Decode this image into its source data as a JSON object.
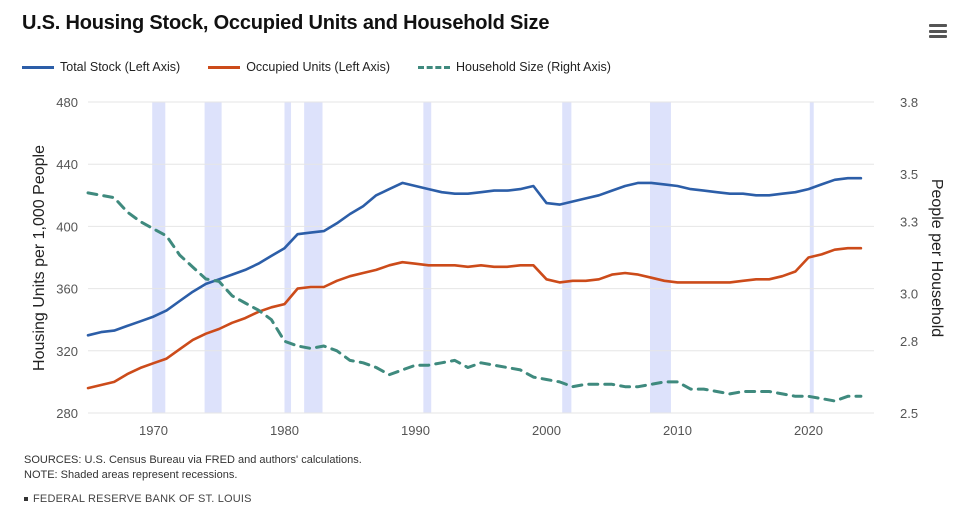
{
  "header": {
    "title": "U.S. Housing Stock, Occupied Units and Household Size",
    "menu_icon": "hamburger-menu-icon"
  },
  "footer": {
    "sources": "SOURCES: U.S. Census Bureau via FRED and authors' calculations.",
    "note": "NOTE: Shaded areas represent recessions.",
    "brand": "FEDERAL RESERVE BANK OF ST. LOUIS"
  },
  "colors": {
    "total": "#2c5ea8",
    "occupied": "#cc4b1a",
    "household": "#3f8a7e",
    "recession": "#dde2fb",
    "grid": "#e6e6e6"
  },
  "chart_data": {
    "type": "line",
    "title": "U.S. Housing Stock, Occupied Units and Household Size",
    "xlabel": "",
    "ylabel": "Housing Units per 1,000 People",
    "y2label": "People per Household",
    "xlim": [
      1965,
      2025
    ],
    "ylim": [
      280,
      480
    ],
    "y2lim": [
      2.5,
      3.8
    ],
    "xticks": [
      1970,
      1980,
      1990,
      2000,
      2010,
      2020
    ],
    "yticks": [
      280,
      320,
      360,
      400,
      440,
      480
    ],
    "y2ticks": [
      2.5,
      2.8,
      3.0,
      3.3,
      3.5,
      3.8
    ],
    "legend_position": "top-left",
    "recessions": [
      [
        1969.9,
        1970.9
      ],
      [
        1973.9,
        1975.2
      ],
      [
        1980.0,
        1980.5
      ],
      [
        1981.5,
        1982.9
      ],
      [
        1990.6,
        1991.2
      ],
      [
        2001.2,
        2001.9
      ],
      [
        2007.9,
        2009.5
      ],
      [
        2020.1,
        2020.4
      ]
    ],
    "series": [
      {
        "name": "Total Stock (Left Axis)",
        "axis": "left",
        "dash": "solid",
        "x": [
          1965,
          1966,
          1967,
          1968,
          1969,
          1970,
          1971,
          1972,
          1973,
          1974,
          1975,
          1976,
          1977,
          1978,
          1979,
          1980,
          1981,
          1982,
          1983,
          1984,
          1985,
          1986,
          1987,
          1988,
          1989,
          1990,
          1991,
          1992,
          1993,
          1994,
          1995,
          1996,
          1997,
          1998,
          1999,
          2000,
          2001,
          2002,
          2003,
          2004,
          2005,
          2006,
          2007,
          2008,
          2009,
          2010,
          2011,
          2012,
          2013,
          2014,
          2015,
          2016,
          2017,
          2018,
          2019,
          2020,
          2021,
          2022,
          2023,
          2024
        ],
        "values": [
          330,
          332,
          333,
          336,
          339,
          342,
          346,
          352,
          358,
          363,
          366,
          369,
          372,
          376,
          381,
          386,
          395,
          396,
          397,
          402,
          408,
          413,
          420,
          424,
          428,
          426,
          424,
          422,
          421,
          421,
          422,
          423,
          423,
          424,
          426,
          415,
          414,
          416,
          418,
          420,
          423,
          426,
          428,
          428,
          427,
          426,
          424,
          423,
          422,
          421,
          421,
          420,
          420,
          421,
          422,
          424,
          427,
          430,
          431,
          431
        ]
      },
      {
        "name": "Occupied Units (Left Axis)",
        "axis": "left",
        "dash": "solid",
        "x": [
          1965,
          1966,
          1967,
          1968,
          1969,
          1970,
          1971,
          1972,
          1973,
          1974,
          1975,
          1976,
          1977,
          1978,
          1979,
          1980,
          1981,
          1982,
          1983,
          1984,
          1985,
          1986,
          1987,
          1988,
          1989,
          1990,
          1991,
          1992,
          1993,
          1994,
          1995,
          1996,
          1997,
          1998,
          1999,
          2000,
          2001,
          2002,
          2003,
          2004,
          2005,
          2006,
          2007,
          2008,
          2009,
          2010,
          2011,
          2012,
          2013,
          2014,
          2015,
          2016,
          2017,
          2018,
          2019,
          2020,
          2021,
          2022,
          2023,
          2024
        ],
        "values": [
          296,
          298,
          300,
          305,
          309,
          312,
          315,
          321,
          327,
          331,
          334,
          338,
          341,
          345,
          348,
          350,
          360,
          361,
          361,
          365,
          368,
          370,
          372,
          375,
          377,
          376,
          375,
          375,
          375,
          374,
          375,
          374,
          374,
          375,
          375,
          366,
          364,
          365,
          365,
          366,
          369,
          370,
          369,
          367,
          365,
          364,
          364,
          364,
          364,
          364,
          365,
          366,
          366,
          368,
          371,
          380,
          382,
          385,
          386,
          386
        ]
      },
      {
        "name": "Household Size (Right Axis)",
        "axis": "right",
        "dash": "dashed",
        "x": [
          1965,
          1966,
          1967,
          1968,
          1969,
          1970,
          1971,
          1972,
          1973,
          1974,
          1975,
          1976,
          1977,
          1978,
          1979,
          1980,
          1981,
          1982,
          1983,
          1984,
          1985,
          1986,
          1987,
          1988,
          1989,
          1990,
          1991,
          1992,
          1993,
          1994,
          1995,
          1996,
          1997,
          1998,
          1999,
          2000,
          2001,
          2002,
          2003,
          2004,
          2005,
          2006,
          2007,
          2008,
          2009,
          2010,
          2011,
          2012,
          2013,
          2014,
          2015,
          2016,
          2017,
          2018,
          2019,
          2020,
          2021,
          2022,
          2023,
          2024
        ],
        "values": [
          3.42,
          3.41,
          3.4,
          3.34,
          3.3,
          3.27,
          3.24,
          3.16,
          3.11,
          3.06,
          3.05,
          2.99,
          2.96,
          2.93,
          2.89,
          2.8,
          2.78,
          2.77,
          2.78,
          2.76,
          2.72,
          2.71,
          2.69,
          2.66,
          2.68,
          2.7,
          2.7,
          2.71,
          2.72,
          2.69,
          2.71,
          2.7,
          2.69,
          2.68,
          2.65,
          2.64,
          2.63,
          2.61,
          2.62,
          2.62,
          2.62,
          2.61,
          2.61,
          2.62,
          2.63,
          2.63,
          2.6,
          2.6,
          2.59,
          2.58,
          2.59,
          2.59,
          2.59,
          2.58,
          2.57,
          2.57,
          2.56,
          2.55,
          2.57,
          2.57
        ]
      }
    ]
  }
}
